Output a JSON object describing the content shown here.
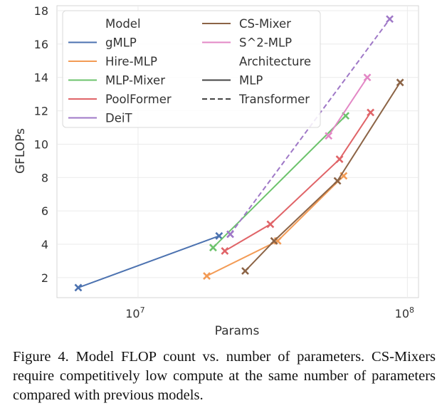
{
  "chart_data": {
    "type": "line",
    "x_scale": "log",
    "xlabel": "Params",
    "ylabel": "GFLOPs",
    "xlim": [
      5000000,
      110000000
    ],
    "ylim": [
      0.8,
      18.3
    ],
    "y_ticks": [
      2,
      4,
      6,
      8,
      10,
      12,
      14,
      16,
      18
    ],
    "x_ticks": [
      {
        "value": 10000000,
        "base": "10",
        "exp": "7"
      },
      {
        "value": 100000000,
        "base": "10",
        "exp": "8"
      }
    ],
    "grid": true,
    "legend": {
      "position": "top-left",
      "model_title": "Model",
      "architecture_title": "Architecture",
      "style_items": [
        {
          "name": "MLP",
          "dash": "solid"
        },
        {
          "name": "Transformer",
          "dash": "dashed"
        }
      ]
    },
    "series": [
      {
        "name": "gMLP",
        "color": "#4c72b0",
        "dash": "solid",
        "points": [
          {
            "x": 6000000,
            "y": 1.4
          },
          {
            "x": 20000000,
            "y": 4.5
          }
        ]
      },
      {
        "name": "Hire-MLP",
        "color": "#f39b55",
        "dash": "solid",
        "points": [
          {
            "x": 18000000,
            "y": 2.1
          },
          {
            "x": 33000000,
            "y": 4.2
          },
          {
            "x": 58000000,
            "y": 8.1
          }
        ]
      },
      {
        "name": "MLP-Mixer",
        "color": "#6cc36c",
        "dash": "solid",
        "points": [
          {
            "x": 19000000,
            "y": 3.8
          },
          {
            "x": 59000000,
            "y": 11.7
          }
        ]
      },
      {
        "name": "PoolFormer",
        "color": "#e06468",
        "dash": "solid",
        "points": [
          {
            "x": 21000000,
            "y": 3.6
          },
          {
            "x": 31000000,
            "y": 5.2
          },
          {
            "x": 56000000,
            "y": 9.1
          },
          {
            "x": 73000000,
            "y": 11.9
          }
        ]
      },
      {
        "name": "DeiT",
        "color": "#9f78c7",
        "dash": "dashed",
        "points": [
          {
            "x": 22000000,
            "y": 4.6
          },
          {
            "x": 86000000,
            "y": 17.5
          }
        ]
      },
      {
        "name": "CS-Mixer",
        "color": "#8c6446",
        "dash": "solid",
        "points": [
          {
            "x": 25000000,
            "y": 2.4
          },
          {
            "x": 32000000,
            "y": 4.2
          },
          {
            "x": 55000000,
            "y": 7.8
          },
          {
            "x": 94000000,
            "y": 13.7
          }
        ]
      },
      {
        "name": "S^2-MLP",
        "color": "#e387c5",
        "dash": "solid",
        "points": [
          {
            "x": 51000000,
            "y": 10.5
          },
          {
            "x": 71000000,
            "y": 14.0
          }
        ]
      }
    ]
  },
  "caption": "Figure 4. Model FLOP count vs. number of parameters.  CS-Mixers require competitively low compute at the same number of parameters compared with previous models."
}
